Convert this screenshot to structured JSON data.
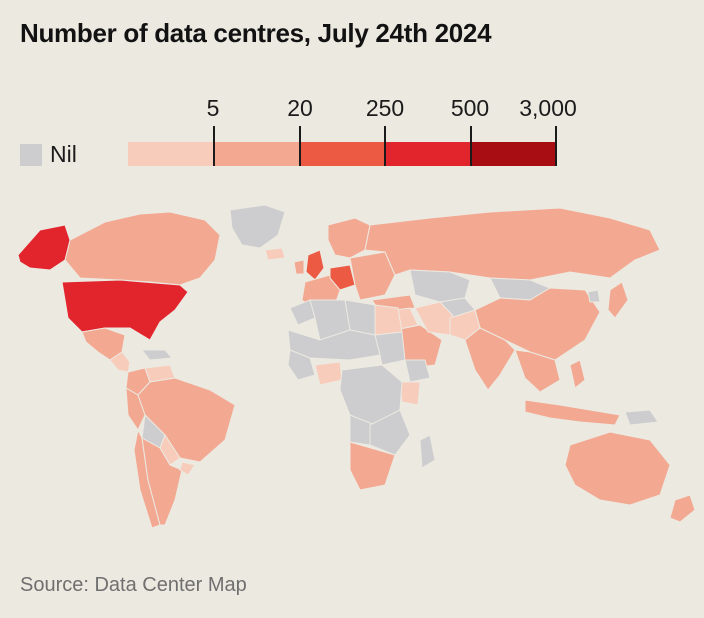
{
  "title": "Number of data centres, July 24th 2024",
  "legend": {
    "nil_label": "Nil",
    "nil_color": "#cdcdcf",
    "thresholds": [
      "5",
      "20",
      "250",
      "500",
      "3,000"
    ],
    "bins": [
      {
        "color": "#f8ccbb"
      },
      {
        "color": "#f3a891"
      },
      {
        "color": "#ec5a43"
      },
      {
        "color": "#e2242d"
      },
      {
        "color": "#a80d14"
      }
    ]
  },
  "map": {
    "regions": [
      {
        "name": "canada",
        "bin": 2
      },
      {
        "name": "alaska",
        "bin": 4
      },
      {
        "name": "greenland",
        "bin": 0
      },
      {
        "name": "united-states",
        "bin": 4
      },
      {
        "name": "mexico",
        "bin": 2
      },
      {
        "name": "central-america",
        "bin": 1
      },
      {
        "name": "caribbean",
        "bin": 0
      },
      {
        "name": "colombia",
        "bin": 2
      },
      {
        "name": "venezuela",
        "bin": 1
      },
      {
        "name": "peru",
        "bin": 2
      },
      {
        "name": "brazil",
        "bin": 2
      },
      {
        "name": "bolivia",
        "bin": 0
      },
      {
        "name": "paraguay",
        "bin": 1
      },
      {
        "name": "chile",
        "bin": 2
      },
      {
        "name": "argentina",
        "bin": 2
      },
      {
        "name": "uruguay",
        "bin": 1
      },
      {
        "name": "iceland",
        "bin": 1
      },
      {
        "name": "united-kingdom",
        "bin": 3
      },
      {
        "name": "ireland",
        "bin": 2
      },
      {
        "name": "scandinavia",
        "bin": 2
      },
      {
        "name": "western-europe",
        "bin": 2
      },
      {
        "name": "germany",
        "bin": 3
      },
      {
        "name": "eastern-europe",
        "bin": 2
      },
      {
        "name": "turkey",
        "bin": 2
      },
      {
        "name": "russia",
        "bin": 2
      },
      {
        "name": "kazakhstan",
        "bin": 0
      },
      {
        "name": "mongolia",
        "bin": 0
      },
      {
        "name": "central-asia",
        "bin": 0
      },
      {
        "name": "china",
        "bin": 2
      },
      {
        "name": "north-korea",
        "bin": 0
      },
      {
        "name": "japan",
        "bin": 2
      },
      {
        "name": "middle-east",
        "bin": 1
      },
      {
        "name": "saudi-arabia",
        "bin": 2
      },
      {
        "name": "iran",
        "bin": 1
      },
      {
        "name": "afghanistan-pakistan",
        "bin": 1
      },
      {
        "name": "india",
        "bin": 2
      },
      {
        "name": "southeast-asia",
        "bin": 2
      },
      {
        "name": "indonesia",
        "bin": 2
      },
      {
        "name": "papua-new-guinea",
        "bin": 0
      },
      {
        "name": "philippines",
        "bin": 2
      },
      {
        "name": "australia",
        "bin": 2
      },
      {
        "name": "new-zealand",
        "bin": 2
      },
      {
        "name": "morocco",
        "bin": 0
      },
      {
        "name": "algeria",
        "bin": 0
      },
      {
        "name": "libya",
        "bin": 0
      },
      {
        "name": "egypt",
        "bin": 1
      },
      {
        "name": "sahel",
        "bin": 0
      },
      {
        "name": "west-africa",
        "bin": 0
      },
      {
        "name": "nigeria",
        "bin": 1
      },
      {
        "name": "sudan",
        "bin": 0
      },
      {
        "name": "ethiopia",
        "bin": 0
      },
      {
        "name": "kenya",
        "bin": 1
      },
      {
        "name": "central-africa",
        "bin": 0
      },
      {
        "name": "angola",
        "bin": 0
      },
      {
        "name": "southern-africa",
        "bin": 0
      },
      {
        "name": "south-africa",
        "bin": 2
      },
      {
        "name": "madagascar",
        "bin": 0
      }
    ]
  },
  "source": "Source: Data Center Map"
}
